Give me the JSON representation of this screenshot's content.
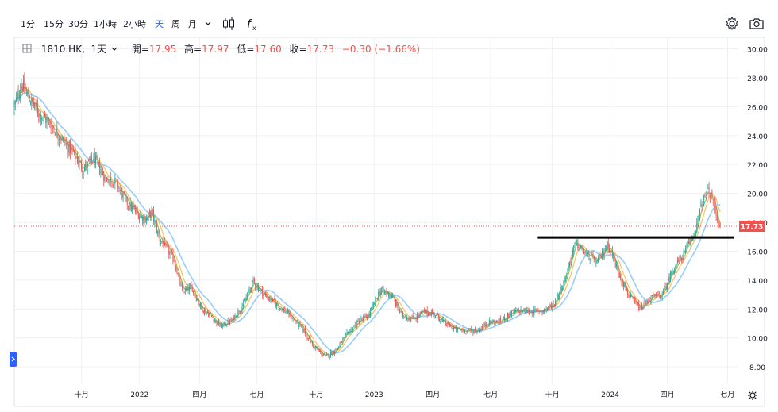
{
  "toolbar": {
    "intervals": [
      "1分",
      "15分",
      "30分",
      "1小時",
      "2小時",
      "天",
      "周",
      "月"
    ],
    "active_interval": "天",
    "dropdown_icon": "chevron-down-icon",
    "chart_type_icon": "candlestick-icon",
    "indicator_icon": "fx-icon",
    "settings_icon": "gear-icon",
    "snapshot_icon": "camera-icon"
  },
  "legend": {
    "symbol": "1810.HK",
    "interval": "1天",
    "open_label": "開=",
    "open": "17.95",
    "high_label": "高=",
    "high": "17.97",
    "low_label": "低=",
    "low": "17.60",
    "close_label": "收=",
    "close": "17.73",
    "change": "−0.30 (−1.66%)"
  },
  "price_tag": "17.73",
  "colors": {
    "up": "#26a69a",
    "down": "#ef5350",
    "ma_short": "#8bc34a",
    "ma_mid": "#ffb74d",
    "ma_long": "#90caf9",
    "grid": "#eef0f4",
    "accent": "#2962ff"
  },
  "chart_data": {
    "type": "candlestick",
    "symbol": "1810.HK",
    "y_ticks": [
      "30.00",
      "28.00",
      "26.00",
      "24.00",
      "22.00",
      "20.00",
      "18.00",
      "16.00",
      "14.00",
      "12.00",
      "10.00",
      "8.00"
    ],
    "ylim": [
      6.8,
      30.8
    ],
    "x_ticks": [
      {
        "label": "十月",
        "t": 0.093
      },
      {
        "label": "2022",
        "t": 0.173
      },
      {
        "label": "四月",
        "t": 0.256
      },
      {
        "label": "七月",
        "t": 0.335
      },
      {
        "label": "十月",
        "t": 0.417
      },
      {
        "label": "2023",
        "t": 0.497
      },
      {
        "label": "四月",
        "t": 0.578
      },
      {
        "label": "七月",
        "t": 0.658
      },
      {
        "label": "十月",
        "t": 0.743
      },
      {
        "label": "2024",
        "t": 0.823
      },
      {
        "label": "四月",
        "t": 0.902
      },
      {
        "label": "七月",
        "t": 0.985
      }
    ],
    "price_path": [
      [
        0.0,
        26.0
      ],
      [
        0.01,
        27.6
      ],
      [
        0.02,
        26.6
      ],
      [
        0.035,
        25.5
      ],
      [
        0.05,
        24.8
      ],
      [
        0.065,
        23.8
      ],
      [
        0.08,
        22.9
      ],
      [
        0.095,
        21.7
      ],
      [
        0.11,
        22.4
      ],
      [
        0.125,
        21.1
      ],
      [
        0.14,
        20.8
      ],
      [
        0.155,
        19.4
      ],
      [
        0.17,
        18.6
      ],
      [
        0.182,
        18.2
      ],
      [
        0.19,
        18.7
      ],
      [
        0.2,
        16.9
      ],
      [
        0.22,
        15.5
      ],
      [
        0.232,
        13.2
      ],
      [
        0.245,
        13.5
      ],
      [
        0.258,
        12.1
      ],
      [
        0.27,
        11.6
      ],
      [
        0.285,
        10.8
      ],
      [
        0.3,
        11.2
      ],
      [
        0.315,
        12.2
      ],
      [
        0.33,
        13.9
      ],
      [
        0.345,
        13.0
      ],
      [
        0.36,
        12.4
      ],
      [
        0.38,
        11.6
      ],
      [
        0.4,
        10.5
      ],
      [
        0.415,
        9.3
      ],
      [
        0.43,
        8.7
      ],
      [
        0.445,
        9.2
      ],
      [
        0.46,
        10.3
      ],
      [
        0.475,
        11.1
      ],
      [
        0.49,
        11.6
      ],
      [
        0.505,
        13.3
      ],
      [
        0.52,
        13.0
      ],
      [
        0.535,
        11.6
      ],
      [
        0.55,
        11.3
      ],
      [
        0.565,
        11.8
      ],
      [
        0.58,
        11.7
      ],
      [
        0.595,
        11.0
      ],
      [
        0.61,
        10.6
      ],
      [
        0.625,
        10.5
      ],
      [
        0.64,
        10.5
      ],
      [
        0.655,
        11.1
      ],
      [
        0.67,
        11.1
      ],
      [
        0.685,
        11.7
      ],
      [
        0.7,
        11.9
      ],
      [
        0.715,
        11.8
      ],
      [
        0.73,
        11.9
      ],
      [
        0.745,
        12.3
      ],
      [
        0.76,
        14.0
      ],
      [
        0.775,
        16.6
      ],
      [
        0.79,
        15.8
      ],
      [
        0.805,
        15.2
      ],
      [
        0.82,
        16.5
      ],
      [
        0.835,
        14.5
      ],
      [
        0.85,
        12.8
      ],
      [
        0.865,
        12.0
      ],
      [
        0.88,
        12.8
      ],
      [
        0.895,
        13.0
      ],
      [
        0.91,
        14.8
      ],
      [
        0.925,
        15.8
      ],
      [
        0.94,
        17.4
      ],
      [
        0.95,
        19.3
      ],
      [
        0.958,
        20.2
      ],
      [
        0.966,
        19.4
      ],
      [
        0.972,
        18.0
      ],
      [
        0.975,
        17.7
      ]
    ],
    "resistance_line": {
      "value": 16.95,
      "t_start": 0.723,
      "t_end": 1.0,
      "color": "#000000"
    },
    "last_price_line": {
      "value": 17.73,
      "color": "#ef5350"
    },
    "moving_averages": [
      {
        "name": "MA-short",
        "period": 5,
        "color": "#8bc34a"
      },
      {
        "name": "MA-mid",
        "period": 10,
        "color": "#ffb74d"
      },
      {
        "name": "MA-long",
        "period": 22,
        "color": "#90caf9"
      }
    ]
  }
}
